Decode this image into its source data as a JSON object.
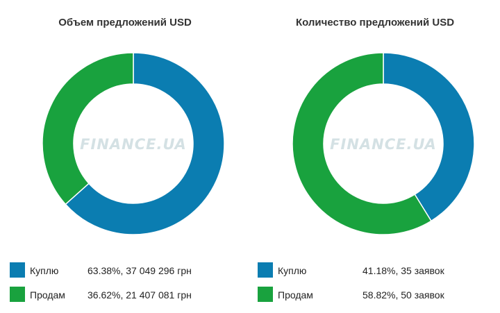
{
  "chart_data": [
    {
      "type": "donut",
      "title": "Объем предложений USD",
      "watermark": "FINANCE.UA",
      "series": [
        {
          "name": "Куплю",
          "percent": 63.38,
          "value_text": "63.38%, 37 049 296 грн",
          "color": "#0b7db1"
        },
        {
          "name": "Продам",
          "percent": 36.62,
          "value_text": "36.62%, 21 407 081 грн",
          "color": "#19a23e"
        }
      ]
    },
    {
      "type": "donut",
      "title": "Количество предложений USD",
      "watermark": "FINANCE.UA",
      "series": [
        {
          "name": "Куплю",
          "percent": 41.18,
          "value_text": "41.18%, 35 заявок",
          "color": "#0b7db1"
        },
        {
          "name": "Продам",
          "percent": 58.82,
          "value_text": "58.82%, 50 заявок",
          "color": "#19a23e"
        }
      ]
    }
  ]
}
